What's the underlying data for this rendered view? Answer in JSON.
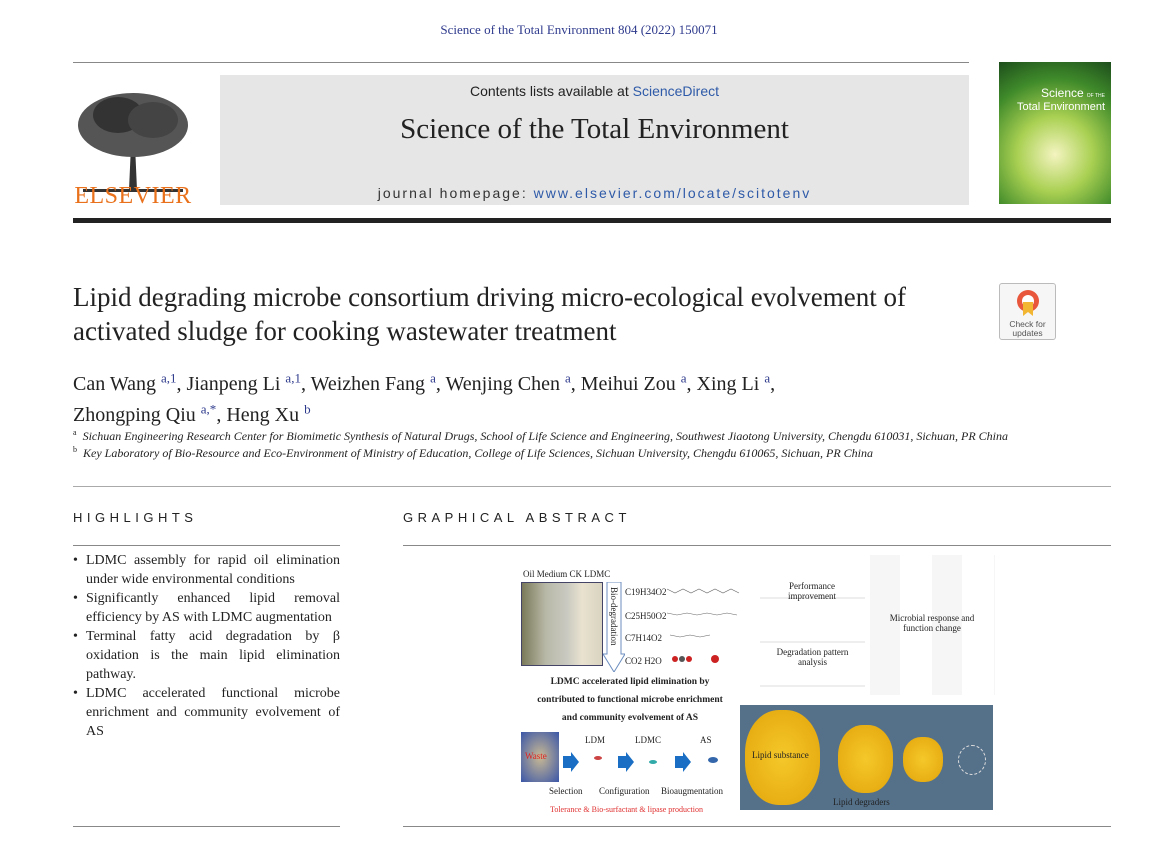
{
  "journal_ref": "Science of the Total Environment 804 (2022) 150071",
  "masthead": {
    "contents_prefix": "Contents lists available at ",
    "contents_link": "ScienceDirect",
    "journal_title": "Science of the Total Environment",
    "homepage_prefix": "journal homepage: ",
    "homepage_url": "www.elsevier.com/locate/scitotenv",
    "publisher": "ELSEVIER",
    "cover_title_1": "Science",
    "cover_title_2": "Total Environment",
    "cover_of": "OF THE"
  },
  "check_updates": {
    "line1": "Check for",
    "line2": "updates"
  },
  "article": {
    "title": "Lipid degrading microbe consortium driving micro-ecological evolvement of activated sludge for cooking wastewater treatment",
    "authors": [
      {
        "name": "Can Wang",
        "sup": "a,1"
      },
      {
        "name": "Jianpeng Li",
        "sup": "a,1"
      },
      {
        "name": "Weizhen Fang",
        "sup": "a"
      },
      {
        "name": "Wenjing Chen",
        "sup": "a"
      },
      {
        "name": "Meihui Zou",
        "sup": "a"
      },
      {
        "name": "Xing Li",
        "sup": "a"
      },
      {
        "name": "Zhongping Qiu",
        "sup": "a,*"
      },
      {
        "name": "Heng Xu",
        "sup": "b"
      }
    ],
    "affiliations": [
      {
        "sup": "a",
        "text": "Sichuan Engineering Research Center for Biomimetic Synthesis of Natural Drugs, School of Life Science and Engineering, Southwest Jiaotong University, Chengdu 610031, Sichuan, PR China"
      },
      {
        "sup": "b",
        "text": "Key Laboratory of Bio-Resource and Eco-Environment of Ministry of Education, College of Life Sciences, Sichuan University, Chengdu 610065, Sichuan, PR China"
      }
    ]
  },
  "highlights": {
    "heading": "HIGHLIGHTS",
    "items": [
      "LDMC assembly for rapid oil elimination under wide environmental conditions",
      "Significantly enhanced lipid removal efficiency by AS with LDMC augmentation",
      "Terminal fatty acid degradation by β oxidation is the main lipid elimination pathway.",
      "LDMC accelerated functional microbe enrichment and community evolvement of AS"
    ]
  },
  "graphical_abstract": {
    "heading": "GRAPHICAL ABSTRACT",
    "tube_labels": "Oil  Medium  CK  LDMC",
    "arrow_label": "Bio-degradation",
    "formulas": [
      "C19H34O2",
      "C25H50O2",
      "C7H14O2",
      "CO2  H2O"
    ],
    "caption": [
      "LDMC accelerated lipid elimination by",
      "contributed to functional microbe enrichment",
      "and community evolvement of AS"
    ],
    "flow_labels": [
      "Waste",
      "LDM",
      "LDMC",
      "AS"
    ],
    "steps": [
      "Selection",
      "Configuration",
      "Bioaugmentation"
    ],
    "footer": "Tolerance & Bio-surfactant & lipase production",
    "panel_labels": [
      "Performance improvement",
      "Degradation pattern analysis",
      "Microbial response and function change",
      "Lipid substance",
      "Lipid degraders"
    ]
  }
}
